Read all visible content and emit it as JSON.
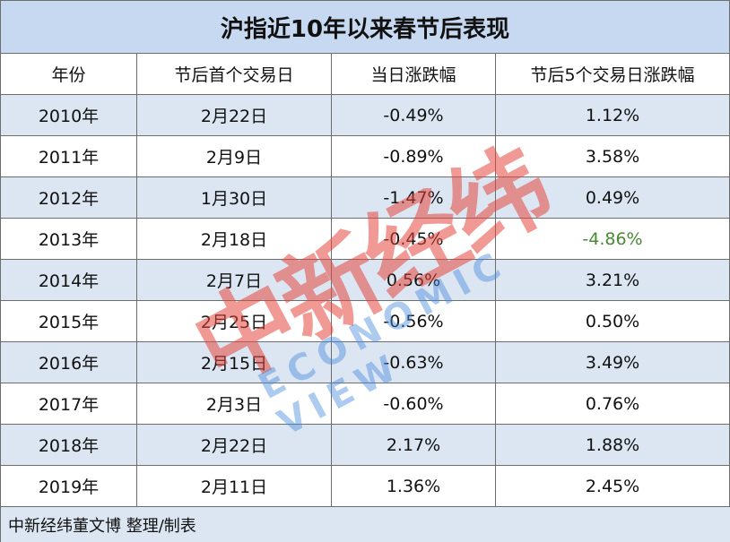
{
  "header": {
    "title": "沪指近10年以来春节后表现"
  },
  "table": {
    "columns": [
      "年份",
      "节后首个交易日",
      "当日涨跌幅",
      "节后5个交易日涨跌幅"
    ],
    "rows": [
      [
        "2010年",
        "2月22日",
        "-0.49%",
        "1.12%"
      ],
      [
        "2011年",
        "2月9日",
        "-0.89%",
        "3.58%"
      ],
      [
        "2012年",
        "1月30日",
        "-1.47%",
        "0.49%"
      ],
      [
        "2013年",
        "2月18日",
        "-0.45%",
        "-4.86%"
      ],
      [
        "2014年",
        "2月7日",
        "0.56%",
        "3.21%"
      ],
      [
        "2015年",
        "2月25日",
        "-0.56%",
        "0.50%"
      ],
      [
        "2016年",
        "2月15日",
        "-0.63%",
        "3.49%"
      ],
      [
        "2017年",
        "2月3日",
        "-0.60%",
        "0.76%"
      ],
      [
        "2018年",
        "2月22日",
        "2.17%",
        "1.88%"
      ],
      [
        "2019年",
        "2月11日",
        "1.36%",
        "2.45%"
      ]
    ]
  },
  "footer": {
    "credit": "中新经纬董文博 整理/制表"
  },
  "watermark": {
    "brand": "中新经纬",
    "sub": "ECONOMIC VIEW"
  }
}
